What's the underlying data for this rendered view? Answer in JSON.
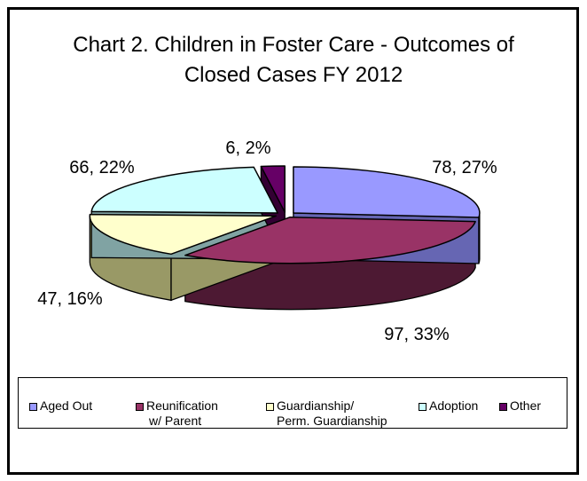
{
  "chart_data": {
    "type": "pie",
    "title_lines": [
      "Chart 2. Children in Foster Care - Outcomes of",
      "Closed Cases FY 2012"
    ],
    "labels": [
      "Aged Out",
      "Reunification w/ Parent",
      "Guardianship/ Perm. Guardianship",
      "Adoption",
      "Other"
    ],
    "legend_labels": [
      [
        "Aged Out"
      ],
      [
        "Reunification",
        "w/ Parent"
      ],
      [
        "Guardianship/",
        "Perm. Guardianship"
      ],
      [
        "Adoption"
      ],
      [
        "Other"
      ]
    ],
    "values": [
      78,
      97,
      47,
      66,
      6
    ],
    "percents": [
      27,
      33,
      16,
      22,
      2
    ],
    "data_labels": [
      "78, 27%",
      "97, 33%",
      "47, 16%",
      "66, 22%",
      "6, 2%"
    ],
    "colors": [
      "#9999FF",
      "#993366",
      "#FFFFCC",
      "#CCFFFF",
      "#660066"
    ],
    "side_colors": [
      "#6666B3",
      "#4D1933",
      "#999966",
      "#80A3A3",
      "#330033"
    ],
    "style": "3d-exploded",
    "legend_position": "bottom"
  }
}
